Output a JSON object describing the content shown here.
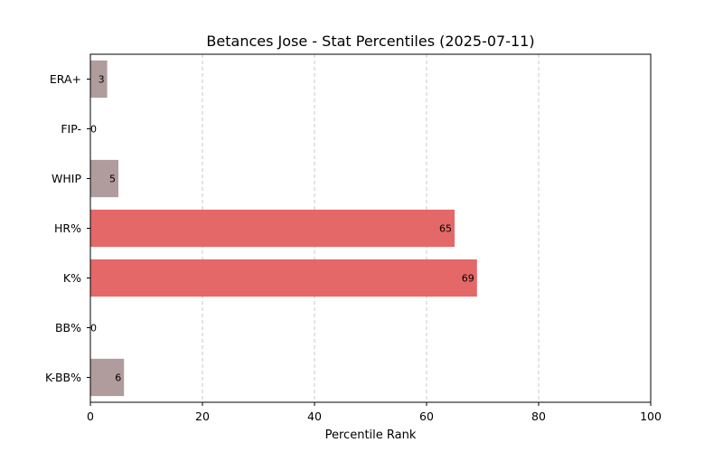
{
  "chart_data": {
    "type": "bar",
    "orientation": "horizontal",
    "title": "Betances Jose - Stat Percentiles (2025-07-11)",
    "xlabel": "Percentile Rank",
    "ylabel": "",
    "xlim": [
      0,
      100
    ],
    "xticks": [
      "0",
      "20",
      "40",
      "60",
      "80",
      "100"
    ],
    "grid": "vertical dashed",
    "categories": [
      "ERA+",
      "FIP-",
      "WHIP",
      "HR%",
      "K%",
      "BB%",
      "K-BB%"
    ],
    "values": [
      3,
      0,
      5,
      65,
      69,
      0,
      6
    ],
    "colors": {
      "low": "#b09c9c",
      "high": "#e46868"
    }
  }
}
